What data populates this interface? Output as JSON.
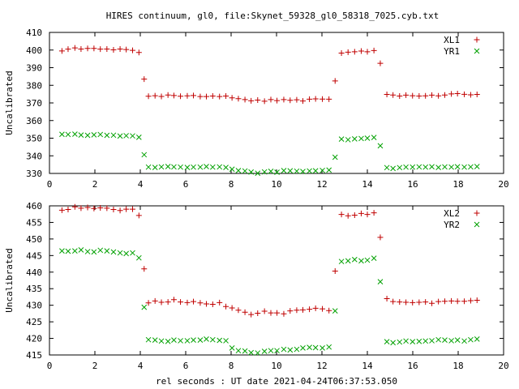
{
  "title": "HIRES continuum, gl0, file:Skynet_59328_gl0_58318_7025.cyb.txt",
  "chart_data": [
    {
      "type": "scatter",
      "ylabel": "Uncalibrated",
      "xlim": [
        0,
        20
      ],
      "ylim": [
        330,
        410
      ],
      "xticks": [
        0,
        2,
        4,
        6,
        8,
        10,
        12,
        14,
        16,
        18,
        20
      ],
      "yticks": [
        330,
        340,
        350,
        360,
        370,
        380,
        390,
        400,
        410
      ],
      "legend_position": "top-right",
      "grid": false,
      "series": [
        {
          "name": "XL1",
          "marker": "+",
          "color": "#c00000",
          "x": [
            0.55,
            0.82,
            1.12,
            1.39,
            1.68,
            1.96,
            2.24,
            2.53,
            2.82,
            3.11,
            3.38,
            3.66,
            3.94,
            4.17,
            4.36,
            4.65,
            4.93,
            5.22,
            5.48,
            5.77,
            6.07,
            6.34,
            6.64,
            6.91,
            7.19,
            7.49,
            7.77,
            8.04,
            8.32,
            8.61,
            8.88,
            9.17,
            9.47,
            9.75,
            10.02,
            10.32,
            10.6,
            10.89,
            11.16,
            11.45,
            11.72,
            12.02,
            12.31,
            12.58,
            12.86,
            13.15,
            13.44,
            13.73,
            14.0,
            14.29,
            14.57,
            14.86,
            15.13,
            15.42,
            15.7,
            15.99,
            16.28,
            16.56,
            16.84,
            17.13,
            17.41,
            17.7,
            17.97,
            18.27,
            18.55,
            18.83
          ],
          "y": [
            399.5,
            400.5,
            401.2,
            400.6,
            400.9,
            400.9,
            400.5,
            400.6,
            400.1,
            400.6,
            400.3,
            399.8,
            398.6,
            383.5,
            373.8,
            374.1,
            373.7,
            374.5,
            374.2,
            373.8,
            374.0,
            374.2,
            373.6,
            373.6,
            373.9,
            373.6,
            373.9,
            372.9,
            372.4,
            371.9,
            371.2,
            371.6,
            371.0,
            371.9,
            371.3,
            371.9,
            371.5,
            371.8,
            371.1,
            372.1,
            372.3,
            372.2,
            372.1,
            382.5,
            398.3,
            398.8,
            399.0,
            399.4,
            399.0,
            399.7,
            392.5,
            374.8,
            374.5,
            373.9,
            374.4,
            374.1,
            373.9,
            374.0,
            374.4,
            374.0,
            374.5,
            375.1,
            375.3,
            374.9,
            374.6,
            374.8
          ]
        },
        {
          "name": "YR1",
          "marker": "x",
          "color": "#00a000",
          "x": [
            0.55,
            0.82,
            1.12,
            1.39,
            1.68,
            1.96,
            2.24,
            2.53,
            2.82,
            3.11,
            3.38,
            3.66,
            3.94,
            4.17,
            4.36,
            4.65,
            4.93,
            5.22,
            5.48,
            5.77,
            6.07,
            6.34,
            6.64,
            6.91,
            7.19,
            7.49,
            7.77,
            8.04,
            8.32,
            8.61,
            8.88,
            9.17,
            9.47,
            9.75,
            10.02,
            10.32,
            10.6,
            10.89,
            11.16,
            11.45,
            11.72,
            12.02,
            12.31,
            12.58,
            12.86,
            13.15,
            13.44,
            13.73,
            14.0,
            14.29,
            14.57,
            14.86,
            15.13,
            15.42,
            15.7,
            15.99,
            16.28,
            16.56,
            16.84,
            17.13,
            17.41,
            17.7,
            17.97,
            18.27,
            18.55,
            18.83
          ],
          "y": [
            352.2,
            352.1,
            352.3,
            351.8,
            351.6,
            351.9,
            352.1,
            351.6,
            351.7,
            351.2,
            351.4,
            351.3,
            350.5,
            340.6,
            333.6,
            333.4,
            333.7,
            333.9,
            333.7,
            333.6,
            333.4,
            333.6,
            333.6,
            333.9,
            333.6,
            333.7,
            333.4,
            332.4,
            331.6,
            331.4,
            330.8,
            330.1,
            330.9,
            331.2,
            330.7,
            331.6,
            331.5,
            331.3,
            331.1,
            331.4,
            331.5,
            331.7,
            331.9,
            339.2,
            349.5,
            349.1,
            349.6,
            349.8,
            350.0,
            350.4,
            345.7,
            333.3,
            332.8,
            333.3,
            333.6,
            333.6,
            333.7,
            333.6,
            333.8,
            333.4,
            333.7,
            333.6,
            333.8,
            333.6,
            333.7,
            333.9
          ]
        }
      ]
    },
    {
      "type": "scatter",
      "ylabel": "Uncalibrated",
      "xlabel": "rel seconds : UT date 2021-04-24T06:37:53.050",
      "xlim": [
        0,
        20
      ],
      "ylim": [
        415,
        460
      ],
      "xticks": [
        0,
        2,
        4,
        6,
        8,
        10,
        12,
        14,
        16,
        18,
        20
      ],
      "yticks": [
        415,
        420,
        425,
        430,
        435,
        440,
        445,
        450,
        455,
        460
      ],
      "legend_position": "top-right",
      "grid": false,
      "series": [
        {
          "name": "XL2",
          "marker": "+",
          "color": "#c00000",
          "x": [
            0.55,
            0.82,
            1.12,
            1.39,
            1.68,
            1.96,
            2.24,
            2.53,
            2.82,
            3.11,
            3.38,
            3.66,
            3.94,
            4.17,
            4.36,
            4.65,
            4.93,
            5.22,
            5.48,
            5.77,
            6.07,
            6.34,
            6.64,
            6.91,
            7.19,
            7.49,
            7.77,
            8.04,
            8.32,
            8.61,
            8.88,
            9.17,
            9.47,
            9.75,
            10.02,
            10.32,
            10.6,
            10.89,
            11.16,
            11.45,
            11.72,
            12.02,
            12.31,
            12.58,
            12.86,
            13.15,
            13.44,
            13.73,
            14.0,
            14.29,
            14.57,
            14.86,
            15.13,
            15.42,
            15.7,
            15.99,
            16.28,
            16.56,
            16.84,
            17.13,
            17.41,
            17.7,
            17.97,
            18.27,
            18.55,
            18.83
          ],
          "y": [
            458.7,
            458.9,
            459.7,
            459.3,
            459.5,
            459.2,
            459.4,
            459.3,
            458.9,
            458.6,
            459.0,
            459.0,
            457.1,
            441.0,
            430.7,
            431.3,
            430.9,
            431.0,
            431.7,
            431.0,
            430.8,
            431.1,
            430.7,
            430.4,
            430.3,
            430.8,
            429.6,
            429.2,
            428.5,
            427.9,
            427.2,
            427.6,
            428.2,
            427.7,
            427.7,
            427.4,
            428.3,
            428.5,
            428.6,
            428.8,
            429.1,
            428.9,
            428.4,
            440.3,
            457.4,
            457.0,
            457.2,
            457.7,
            457.4,
            457.9,
            450.5,
            432.0,
            431.1,
            431.0,
            430.9,
            430.8,
            430.9,
            431.0,
            430.6,
            431.1,
            431.2,
            431.3,
            431.2,
            431.2,
            431.4,
            431.5
          ]
        },
        {
          "name": "YR2",
          "marker": "x",
          "color": "#00a000",
          "x": [
            0.55,
            0.82,
            1.12,
            1.39,
            1.68,
            1.96,
            2.24,
            2.53,
            2.82,
            3.11,
            3.38,
            3.66,
            3.94,
            4.17,
            4.36,
            4.65,
            4.93,
            5.22,
            5.48,
            5.77,
            6.07,
            6.34,
            6.64,
            6.91,
            7.19,
            7.49,
            7.77,
            8.04,
            8.32,
            8.61,
            8.88,
            9.17,
            9.47,
            9.75,
            10.02,
            10.32,
            10.6,
            10.89,
            11.16,
            11.45,
            11.72,
            12.02,
            12.31,
            12.58,
            12.86,
            13.15,
            13.44,
            13.73,
            14.0,
            14.29,
            14.57,
            14.86,
            15.13,
            15.42,
            15.7,
            15.99,
            16.28,
            16.56,
            16.84,
            17.13,
            17.41,
            17.7,
            17.97,
            18.27,
            18.55,
            18.83
          ],
          "y": [
            446.4,
            446.3,
            446.4,
            446.7,
            446.2,
            446.1,
            446.6,
            446.4,
            446.1,
            445.8,
            445.6,
            445.8,
            444.3,
            429.4,
            419.6,
            419.5,
            419.2,
            419.1,
            419.5,
            419.3,
            419.3,
            419.5,
            419.5,
            419.8,
            419.6,
            419.4,
            419.3,
            417.1,
            416.3,
            416.2,
            415.7,
            415.6,
            416.1,
            416.3,
            416.3,
            416.7,
            416.5,
            416.7,
            417.1,
            417.3,
            417.2,
            417.1,
            417.4,
            428.3,
            443.2,
            443.4,
            443.8,
            443.4,
            443.6,
            444.2,
            437.1,
            419.0,
            418.7,
            418.9,
            419.2,
            419.0,
            419.1,
            419.2,
            419.3,
            419.6,
            419.5,
            419.3,
            419.5,
            419.2,
            419.6,
            419.8
          ]
        }
      ]
    }
  ]
}
